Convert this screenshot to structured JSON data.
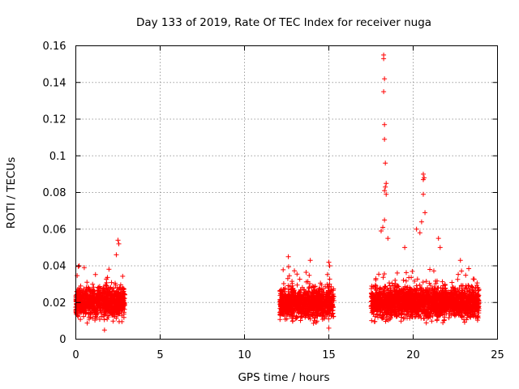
{
  "chart_data": {
    "type": "scatter",
    "title": "Day 133 of 2019, Rate Of TEC Index for receiver nuga",
    "xlabel": "GPS time / hours",
    "ylabel": "ROTI / TECUs",
    "xlim": [
      0,
      25
    ],
    "ylim": [
      0,
      0.16
    ],
    "grid": true,
    "marker": "+",
    "color": "#ff0000",
    "x_ticks": [
      "0",
      "5",
      "10",
      "15",
      "20",
      "25"
    ],
    "y_ticks": [
      "0",
      "0.02",
      "0.04",
      "0.06",
      "0.08",
      "0.1",
      "0.12",
      "0.14",
      "0.16"
    ],
    "clusters": [
      {
        "x_range": [
          0.0,
          2.9
        ],
        "typical_range": [
          0.008,
          0.032
        ],
        "count": 900
      },
      {
        "x_range": [
          12.1,
          15.3
        ],
        "typical_range": [
          0.008,
          0.031
        ],
        "count": 1100
      },
      {
        "x_range": [
          17.5,
          23.9
        ],
        "typical_range": [
          0.008,
          0.032
        ],
        "count": 2200
      }
    ],
    "notable_points": [
      {
        "x": 2.5,
        "y": 0.054
      },
      {
        "x": 2.55,
        "y": 0.052
      },
      {
        "x": 2.4,
        "y": 0.046
      },
      {
        "x": 0.2,
        "y": 0.04
      },
      {
        "x": 0.5,
        "y": 0.039
      },
      {
        "x": 1.7,
        "y": 0.005
      },
      {
        "x": 12.6,
        "y": 0.045
      },
      {
        "x": 13.9,
        "y": 0.043
      },
      {
        "x": 15.0,
        "y": 0.042
      },
      {
        "x": 15.05,
        "y": 0.04
      },
      {
        "x": 15.0,
        "y": 0.006
      },
      {
        "x": 18.25,
        "y": 0.155
      },
      {
        "x": 18.25,
        "y": 0.153
      },
      {
        "x": 18.3,
        "y": 0.142
      },
      {
        "x": 18.25,
        "y": 0.135
      },
      {
        "x": 18.3,
        "y": 0.117
      },
      {
        "x": 18.3,
        "y": 0.109
      },
      {
        "x": 18.35,
        "y": 0.096
      },
      {
        "x": 18.4,
        "y": 0.085
      },
      {
        "x": 18.35,
        "y": 0.083
      },
      {
        "x": 18.3,
        "y": 0.081
      },
      {
        "x": 18.4,
        "y": 0.079
      },
      {
        "x": 18.3,
        "y": 0.065
      },
      {
        "x": 18.2,
        "y": 0.061
      },
      {
        "x": 18.1,
        "y": 0.059
      },
      {
        "x": 18.5,
        "y": 0.055
      },
      {
        "x": 20.6,
        "y": 0.09
      },
      {
        "x": 20.65,
        "y": 0.088
      },
      {
        "x": 20.6,
        "y": 0.087
      },
      {
        "x": 20.6,
        "y": 0.079
      },
      {
        "x": 20.7,
        "y": 0.069
      },
      {
        "x": 20.5,
        "y": 0.064
      },
      {
        "x": 20.2,
        "y": 0.06
      },
      {
        "x": 20.4,
        "y": 0.058
      },
      {
        "x": 21.5,
        "y": 0.055
      },
      {
        "x": 21.6,
        "y": 0.05
      },
      {
        "x": 19.5,
        "y": 0.05
      },
      {
        "x": 22.8,
        "y": 0.043
      }
    ]
  }
}
